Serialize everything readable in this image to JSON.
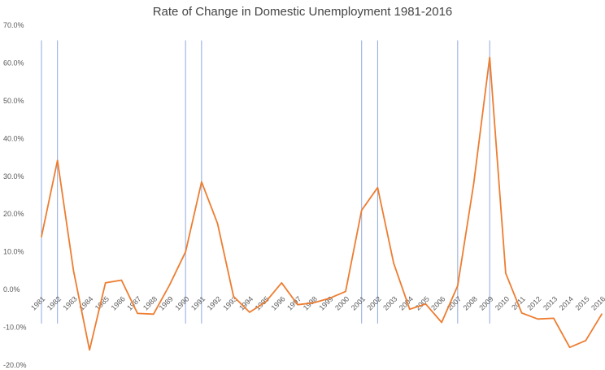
{
  "chart_data": {
    "type": "line",
    "title": "Rate of Change in Domestic Unemployment 1981-2016",
    "xlabel": "",
    "ylabel": "",
    "ylim": [
      -20,
      70
    ],
    "y_ticks": [
      70,
      60,
      50,
      40,
      30,
      20,
      10,
      0,
      -10,
      -20
    ],
    "y_tick_labels": [
      "70.0%",
      "60.0%",
      "50.0%",
      "40.0%",
      "30.0%",
      "20.0%",
      "10.0%",
      "0.0%",
      "-10.0%",
      "-20.0%"
    ],
    "categories": [
      "1981",
      "1982",
      "1983",
      "1984",
      "1985",
      "1986",
      "1987",
      "1988",
      "1989",
      "1990",
      "1991",
      "1992",
      "1993",
      "1994",
      "1995",
      "1996",
      "1997",
      "1998",
      "1999",
      "2000",
      "2001",
      "2002",
      "2003",
      "2004",
      "2005",
      "2006",
      "2007",
      "2008",
      "2009",
      "2010",
      "2011",
      "2012",
      "2013",
      "2014",
      "2015",
      "2016"
    ],
    "series": [
      {
        "values": [
          14.0,
          34.2,
          5.0,
          -16.0,
          1.8,
          2.5,
          -6.3,
          -6.5,
          1.2,
          10.0,
          28.5,
          17.5,
          -1.8,
          -6.0,
          -3.3,
          1.8,
          -4.0,
          -3.5,
          -2.3,
          -0.5,
          21.0,
          27.0,
          7.0,
          -5.2,
          -3.8,
          -8.7,
          1.0,
          28.0,
          61.5,
          4.3,
          -6.2,
          -7.8,
          -7.6,
          -15.3,
          -13.5,
          -6.5
        ],
        "color": "#ED7D31"
      }
    ],
    "reference_lines": [
      "1981",
      "1982",
      "1990",
      "1991",
      "2001",
      "2002",
      "2007",
      "2009"
    ],
    "reference_line_color": "#8EA9DB",
    "grid": false,
    "legend": "none"
  }
}
